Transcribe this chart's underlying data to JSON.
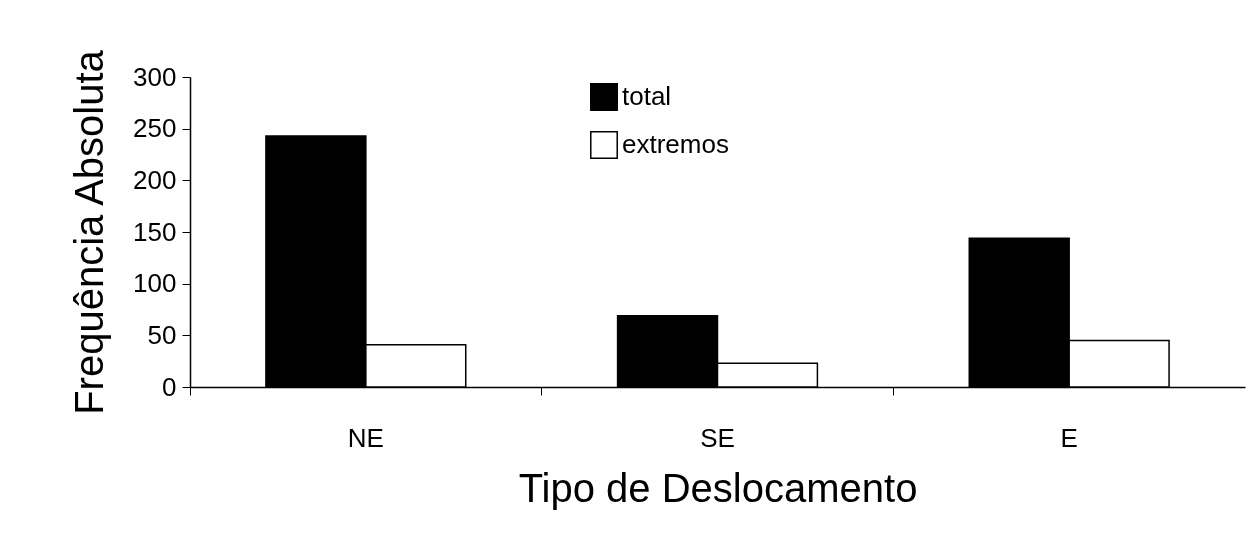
{
  "chart_data": {
    "type": "bar",
    "xlabel": "Tipo de Deslocamento",
    "ylabel": "Frequência Absoluta",
    "categories": [
      "NE",
      "SE",
      "E"
    ],
    "series": [
      {
        "name": "total",
        "color": "#000000",
        "values": [
          243,
          69,
          144
        ]
      },
      {
        "name": "extremos",
        "color": "#ffffff",
        "values": [
          41,
          23,
          45
        ]
      }
    ],
    "ylim": [
      0,
      300
    ],
    "yticks": [
      0,
      50,
      100,
      150,
      200,
      250,
      300
    ],
    "grid": false,
    "legend": "top"
  }
}
